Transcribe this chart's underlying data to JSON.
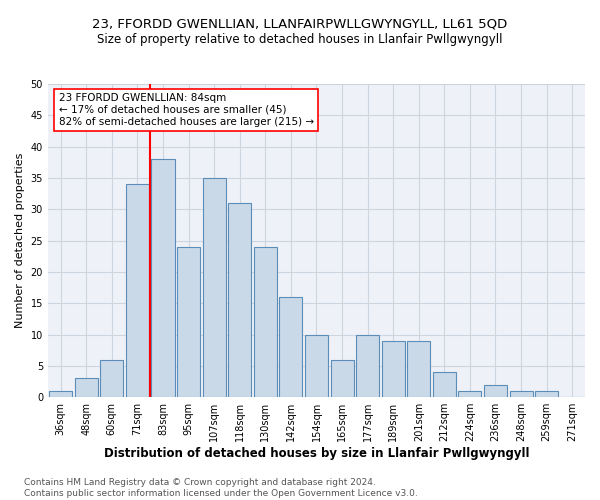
{
  "title": "23, FFORDD GWENLLIAN, LLANFAIRPWLLGWYNGYLL, LL61 5QD",
  "subtitle": "Size of property relative to detached houses in Llanfair Pwllgwyngyll",
  "xlabel": "Distribution of detached houses by size in Llanfair Pwllgwyngyll",
  "ylabel": "Number of detached properties",
  "bar_labels": [
    "36sqm",
    "48sqm",
    "60sqm",
    "71sqm",
    "83sqm",
    "95sqm",
    "107sqm",
    "118sqm",
    "130sqm",
    "142sqm",
    "154sqm",
    "165sqm",
    "177sqm",
    "189sqm",
    "201sqm",
    "212sqm",
    "224sqm",
    "236sqm",
    "248sqm",
    "259sqm",
    "271sqm"
  ],
  "bar_values": [
    1,
    3,
    6,
    34,
    38,
    24,
    35,
    31,
    24,
    16,
    10,
    6,
    10,
    9,
    9,
    4,
    1,
    2,
    1,
    1,
    0
  ],
  "bar_color": "#c9d9e8",
  "bar_edge_color": "#5b8db8",
  "vline_color": "red",
  "vline_bar_index": 4,
  "annotation_line1": "23 FFORDD GWENLLIAN: 84sqm",
  "annotation_line2": "← 17% of detached houses are smaller (45)",
  "annotation_line3": "82% of semi-detached houses are larger (215) →",
  "annotation_box_color": "white",
  "annotation_box_edge": "red",
  "ylim_max": 50,
  "yticks": [
    0,
    5,
    10,
    15,
    20,
    25,
    30,
    35,
    40,
    45,
    50
  ],
  "grid_color": "#cdd5e0",
  "background_color": "#eef2f8",
  "footer": "Contains HM Land Registry data © Crown copyright and database right 2024.\nContains public sector information licensed under the Open Government Licence v3.0.",
  "title_fontsize": 9.5,
  "subtitle_fontsize": 8.5,
  "xlabel_fontsize": 8.5,
  "ylabel_fontsize": 8,
  "tick_fontsize": 7,
  "annotation_fontsize": 7.5,
  "footer_fontsize": 6.5
}
